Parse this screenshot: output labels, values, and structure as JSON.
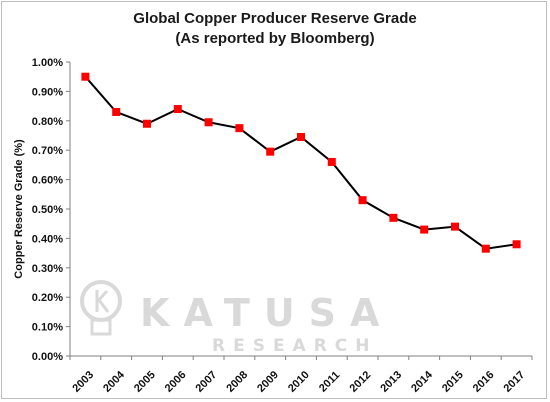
{
  "chart_data": {
    "type": "line",
    "title": "Global Copper Producer Reserve Grade",
    "subtitle": "(As reported by Bloomberg)",
    "xlabel": "",
    "ylabel": "Copper Reserve Grade (%)",
    "categories": [
      "2003",
      "2004",
      "2005",
      "2006",
      "2007",
      "2008",
      "2009",
      "2010",
      "2011",
      "2012",
      "2013",
      "2014",
      "2015",
      "2016",
      "2017"
    ],
    "series": [
      {
        "values": [
          0.95,
          0.83,
          0.79,
          0.84,
          0.795,
          0.775,
          0.695,
          0.745,
          0.66,
          0.53,
          0.47,
          0.43,
          0.44,
          0.365,
          0.38
        ]
      }
    ],
    "y_ticks": [
      "0.00%",
      "0.10%",
      "0.20%",
      "0.30%",
      "0.40%",
      "0.50%",
      "0.60%",
      "0.70%",
      "0.80%",
      "0.90%",
      "1.00%"
    ],
    "ylim": [
      0,
      1.0
    ],
    "grid": false,
    "line_color": "#000000",
    "marker_color": "#ff0000",
    "watermark": {
      "brand": "KATUSA",
      "sub": "RESEARCH",
      "color": "#d9d9d9"
    }
  }
}
